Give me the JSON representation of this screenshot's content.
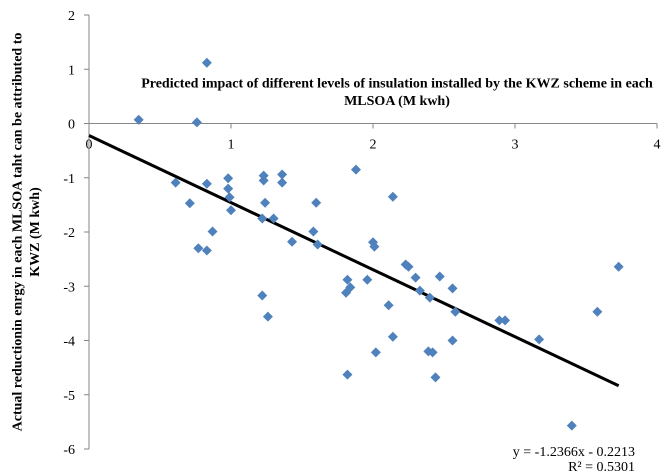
{
  "chart_data": {
    "type": "scatter",
    "title": "Predicted impact of different levels of insulation installed by the KWZ scheme in each MLSOA (M kwh)",
    "y_label": "Actual reductionin enrgy in each MLSOA taht can be attributed to KWZ (M kwh)",
    "x": [
      0.35,
      0.76,
      0.83,
      0.61,
      0.71,
      0.83,
      0.98,
      0.98,
      0.99,
      1.0,
      0.77,
      0.87,
      0.83,
      1.23,
      1.23,
      1.36,
      1.36,
      1.24,
      1.22,
      1.3,
      1.43,
      1.6,
      1.58,
      1.61,
      1.22,
      1.26,
      1.88,
      2.14,
      2.0,
      2.01,
      2.23,
      2.25,
      2.3,
      1.82,
      1.84,
      1.81,
      1.96,
      2.11,
      2.47,
      2.33,
      2.4,
      2.56,
      2.58,
      2.56,
      2.14,
      2.02,
      2.39,
      2.42,
      1.82,
      2.44,
      2.89,
      2.93,
      3.17,
      3.58,
      3.73,
      3.4
    ],
    "y": [
      0.07,
      0.02,
      1.12,
      -1.09,
      -1.47,
      -1.11,
      -1.01,
      -1.2,
      -1.36,
      -1.6,
      -2.3,
      -1.99,
      -2.34,
      -0.96,
      -1.05,
      -0.94,
      -1.09,
      -1.46,
      -1.75,
      -1.75,
      -2.18,
      -1.46,
      -1.99,
      -2.23,
      -3.17,
      -3.56,
      -0.85,
      -1.35,
      -2.19,
      -2.27,
      -2.6,
      -2.64,
      -2.84,
      -2.88,
      -3.02,
      -3.12,
      -2.88,
      -3.35,
      -2.82,
      -3.08,
      -3.21,
      -3.04,
      -3.47,
      -4.0,
      -3.93,
      -4.22,
      -4.2,
      -4.22,
      -4.63,
      -4.68,
      -3.63,
      -3.63,
      -3.98,
      -3.47,
      -2.64,
      -5.57
    ],
    "color": "#4f81bd",
    "xlim": [
      0,
      4
    ],
    "xticks": [
      0,
      1,
      2,
      3,
      4
    ],
    "ylim": [
      -6,
      2
    ],
    "yticks": [
      -6,
      -5,
      -4,
      -3,
      -2,
      -1,
      0,
      1,
      2
    ],
    "trendline": {
      "slope": -1.2366,
      "intercept": -0.2213,
      "color": "#000000",
      "equation": "y = -1.2366x - 0.2213",
      "r_squared": "R² = 0.5301"
    }
  }
}
